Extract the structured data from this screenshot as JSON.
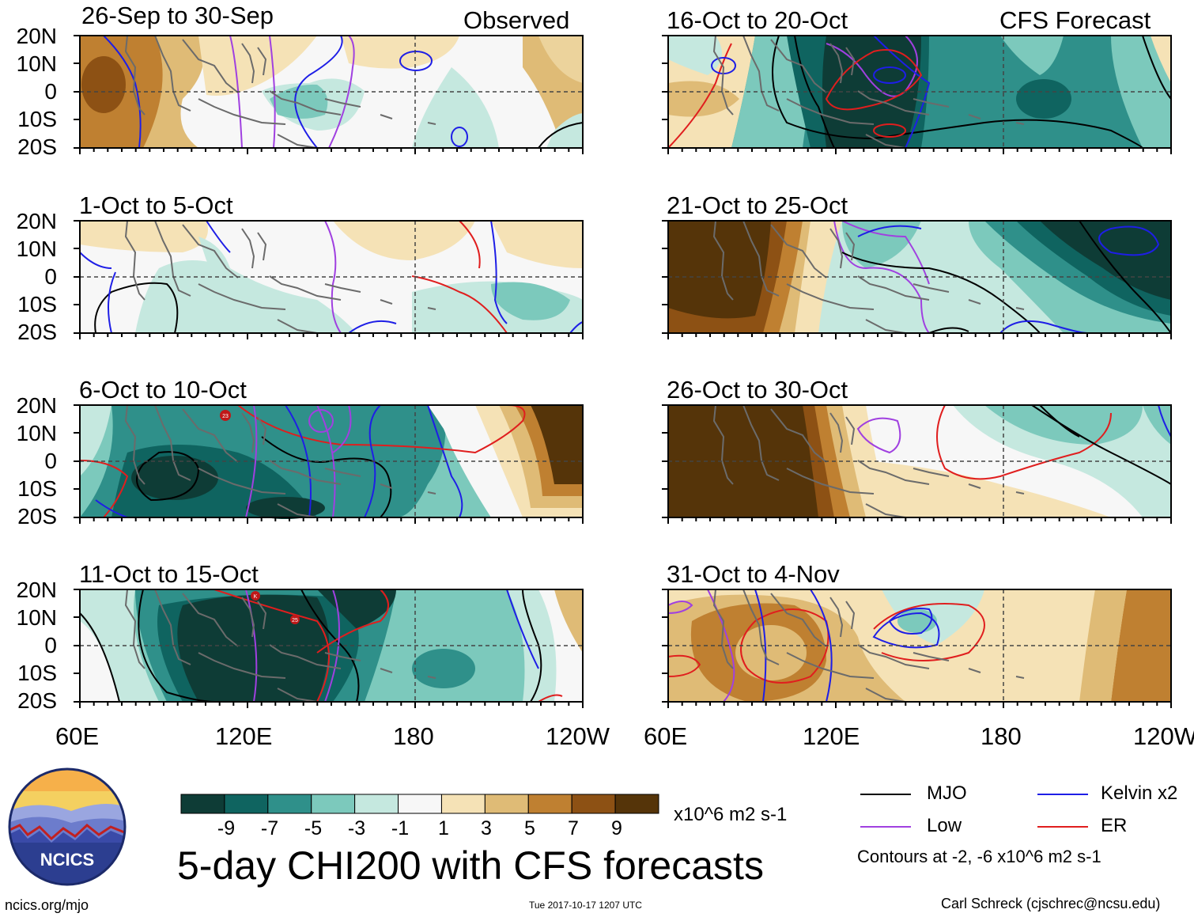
{
  "header": {
    "left_tag": "Observed",
    "right_tag": "CFS Forecast"
  },
  "panels": [
    {
      "title": "26-Sep to 30-Sep"
    },
    {
      "title": "1-Oct to 5-Oct"
    },
    {
      "title": "6-Oct to 10-Oct"
    },
    {
      "title": "11-Oct to 15-Oct"
    },
    {
      "title": "16-Oct to 20-Oct"
    },
    {
      "title": "21-Oct to 25-Oct"
    },
    {
      "title": "26-Oct to 30-Oct"
    },
    {
      "title": "31-Oct to 4-Nov"
    }
  ],
  "axes": {
    "lat_labels": [
      "20N",
      "10N",
      "0",
      "10S",
      "20S"
    ],
    "lon_labels": [
      "60E",
      "120E",
      "180",
      "120W"
    ]
  },
  "colorbar": {
    "labels": [
      "-9",
      "-7",
      "-5",
      "-3",
      "-1",
      "1",
      "3",
      "5",
      "7",
      "9"
    ],
    "colors": [
      "#0e3c36",
      "#0f6460",
      "#2f908a",
      "#7cc9bc",
      "#c5e8df",
      "#f7f7f7",
      "#f5e2b6",
      "#dfbb76",
      "#bf8031",
      "#8d5114",
      "#553409"
    ],
    "units": "x10^6 m2 s-1"
  },
  "title": "5-day CHI200 with CFS forecasts",
  "legend": {
    "items": [
      {
        "label": "MJO",
        "color": "#000000"
      },
      {
        "label": "Kelvin x2",
        "color": "#1e1ee6"
      },
      {
        "label": "Low",
        "color": "#a040e0"
      },
      {
        "label": "ER",
        "color": "#e01e1e"
      }
    ],
    "note": "Contours at -2, -6 x10^6 m2 s-1"
  },
  "footer": {
    "site": "ncics.org/mjo",
    "timestamp": "Tue 2017-10-17 1207 UTC",
    "credit": "Carl Schreck (cjschrec@ncsu.edu)",
    "logo_text": "NCICS"
  },
  "chart_data": {
    "type": "heatmap",
    "title": "5-day CHI200 with CFS forecasts",
    "variable": "200-hPa velocity potential anomaly (CHI200)",
    "units": "x10^6 m2 s-1",
    "x_range": [
      "60E",
      "120W"
    ],
    "y_range": [
      "20S",
      "20N"
    ],
    "xticks": [
      "60E",
      "120E",
      "180",
      "120W"
    ],
    "yticks": [
      "20N",
      "10N",
      "0",
      "10S",
      "20S"
    ],
    "levels": [
      -9,
      -7,
      -5,
      -3,
      -1,
      1,
      3,
      5,
      7,
      9
    ],
    "contour_levels": [
      -2,
      -6
    ],
    "overlays": [
      "MJO",
      "Kelvin x2",
      "Low",
      "ER"
    ],
    "observed_panels": [
      "26-Sep to 30-Sep",
      "1-Oct to 5-Oct",
      "6-Oct to 10-Oct",
      "11-Oct to 15-Oct"
    ],
    "forecast_panels": [
      "16-Oct to 20-Oct",
      "21-Oct to 25-Oct",
      "26-Oct to 30-Oct",
      "31-Oct to 4-Nov"
    ]
  }
}
